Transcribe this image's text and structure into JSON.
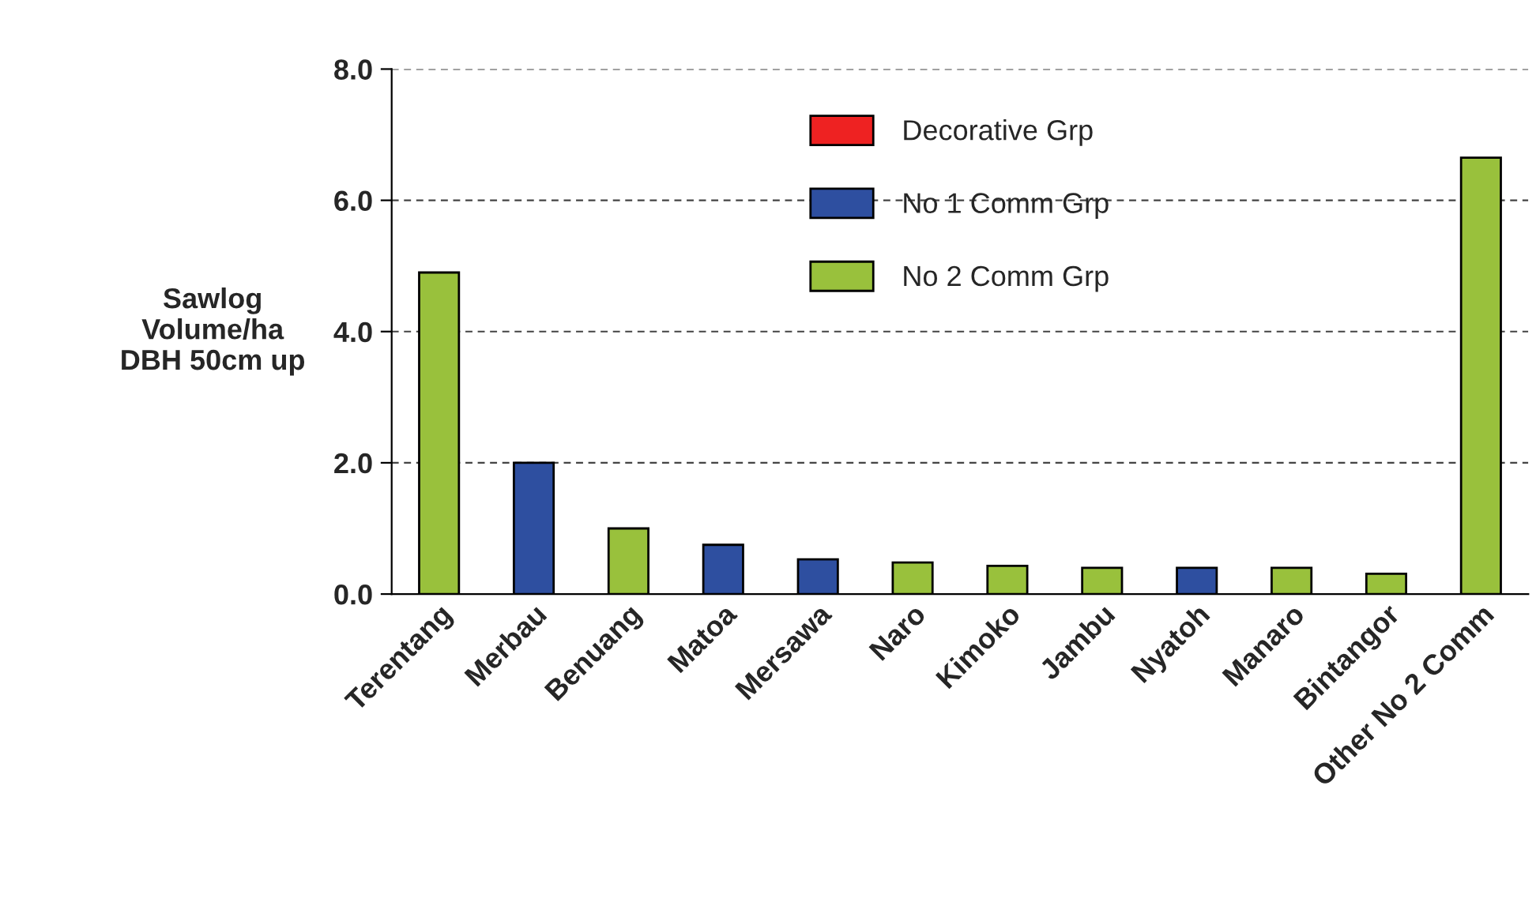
{
  "chart_data": {
    "type": "bar",
    "ylabel": "Sawlog\nVolume/ha\nDBH 50cm up",
    "categories": [
      "Terentang",
      "Merbau",
      "Benuang",
      "Matoa",
      "Mersawa",
      "Naro",
      "Kimoko",
      "Jambu",
      "Nyatoh",
      "Manaro",
      "Bintangor",
      "Other No 2 Comm"
    ],
    "series": [
      {
        "name": "Decorative Grp",
        "color": "#ee2222",
        "values": [
          null,
          null,
          null,
          null,
          null,
          null,
          null,
          null,
          null,
          null,
          null,
          null
        ]
      },
      {
        "name": "No 1 Comm Grp",
        "color": "#2e4fa0",
        "values": [
          null,
          2.0,
          null,
          0.75,
          0.53,
          null,
          null,
          null,
          0.4,
          null,
          null,
          null
        ]
      },
      {
        "name": "No 2 Comm Grp",
        "color": "#99c13c",
        "values": [
          4.9,
          null,
          1.0,
          null,
          null,
          0.48,
          0.43,
          0.4,
          null,
          0.4,
          0.31,
          6.65
        ]
      }
    ],
    "ylim": [
      0,
      8
    ],
    "yticks": [
      {
        "value": 0,
        "label": "0.0"
      },
      {
        "value": 2,
        "label": "2.0"
      },
      {
        "value": 4,
        "label": "4.0"
      },
      {
        "value": 6,
        "label": "6.0"
      },
      {
        "value": 8,
        "label": "8.0"
      }
    ],
    "grid": "y",
    "legend": "top"
  }
}
